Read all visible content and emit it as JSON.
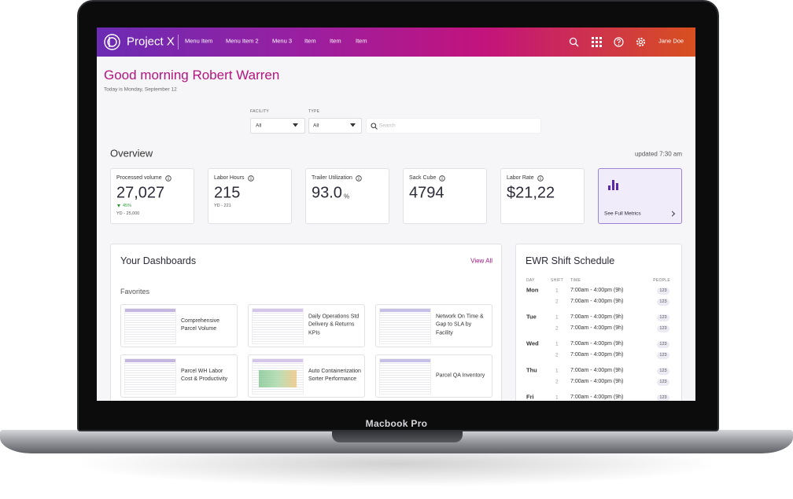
{
  "header": {
    "brand": "Project X",
    "menu": [
      "Menu Item",
      "Menu Item 2",
      "Menu 3",
      "Item",
      "Item",
      "Item"
    ],
    "user": "Jane Doe"
  },
  "greeting": {
    "title": "Good morning Robert Warren",
    "date": "Today is Monday, September 12"
  },
  "filters": {
    "facility_label": "FACILITY",
    "facility": "All",
    "type_label": "TYPE",
    "type": "All",
    "search": "Search"
  },
  "overview": {
    "title": "Overview",
    "updated": "updated 7:30 am",
    "metrics": [
      {
        "label": "Processed volume",
        "value": "27,027",
        "change": "45%",
        "sub": "YD - 25,000"
      },
      {
        "label": "Labor Hours",
        "value": "215",
        "sub": "YD - 221"
      },
      {
        "label": "Trailer Utilization",
        "value": "93.0",
        "unit": "%"
      },
      {
        "label": "Sack Cube",
        "value": "4794"
      },
      {
        "label": "Labor Rate",
        "value": "$21,22"
      }
    ],
    "full_metrics": "See Full Metrics"
  },
  "dashboards": {
    "title": "Your Dashboards",
    "view_all": "View All",
    "section": "Favorites",
    "items": [
      "Comprehensive Parcel Volume",
      "Daily Operations Std Delivery & Returns KPIs",
      "Network On Time & Gap to SLA by Facility",
      "Parcel WH Labor Cost & Productivity",
      "Auto Containerization Sorter Performance",
      "Parcel QA Inventory"
    ]
  },
  "schedule": {
    "title": "EWR Shift Schedule",
    "columns": [
      "DAY",
      "SHIFT",
      "TIME",
      "PEOPLE"
    ],
    "days": [
      {
        "day": "Mon",
        "shifts": [
          {
            "shift": "1",
            "time": "7:00am - 4:00pm (9h)",
            "people": "123"
          },
          {
            "shift": "2",
            "time": "7:00am - 4:00pm (9h)",
            "people": "123"
          }
        ]
      },
      {
        "day": "Tue",
        "shifts": [
          {
            "shift": "1",
            "time": "7:00am - 4:00pm (9h)",
            "people": "123"
          },
          {
            "shift": "2",
            "time": "7:00am - 4:00pm (9h)",
            "people": "123"
          }
        ]
      },
      {
        "day": "Wed",
        "shifts": [
          {
            "shift": "1",
            "time": "7:00am - 4:00pm (9h)",
            "people": "123"
          },
          {
            "shift": "2",
            "time": "7:00am - 4:00pm (9h)",
            "people": "123"
          }
        ]
      },
      {
        "day": "Thu",
        "shifts": [
          {
            "shift": "1",
            "time": "7:00am - 4:00pm (9h)",
            "people": "123"
          },
          {
            "shift": "2",
            "time": "7:00am - 4:00pm (9h)",
            "people": "123"
          }
        ]
      },
      {
        "day": "Fri",
        "shifts": [
          {
            "shift": "1",
            "time": "7:00am - 4:00pm (9h)",
            "people": "123"
          }
        ]
      }
    ]
  },
  "device": "Macbook Pro"
}
